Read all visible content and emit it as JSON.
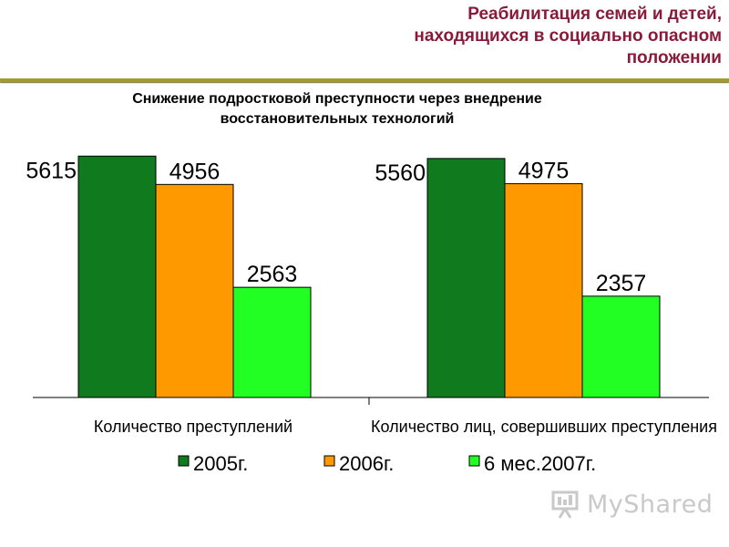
{
  "header": {
    "title_lines": [
      "Реабилитация семей и детей,",
      "находящихся в социально опасном",
      "положении"
    ]
  },
  "chart_data": {
    "type": "bar",
    "title_lines": [
      "Снижение подростковой преступности через внедрение",
      "восстановительных технологий"
    ],
    "categories": [
      "Количество преступлений",
      "Количество лиц, совершивших преступления"
    ],
    "series": [
      {
        "name": "2005г.",
        "values": [
          5615,
          5560
        ],
        "color": "#0f7a1e"
      },
      {
        "name": "2006г.",
        "values": [
          4956,
          4975
        ],
        "color": "#ff9900"
      },
      {
        "name": "6 мес.2007г.",
        "values": [
          2563,
          2357
        ],
        "color": "#22ff22"
      }
    ],
    "value_labels": [
      [
        "5615",
        "5560"
      ],
      [
        "4956",
        "4975"
      ],
      [
        "2563",
        "2357"
      ]
    ],
    "ylim": [
      0,
      6000
    ],
    "grid": false,
    "legend_position": "bottom"
  },
  "watermark": {
    "brand_text": "MyShared",
    "icon": "presentation-board-icon"
  }
}
